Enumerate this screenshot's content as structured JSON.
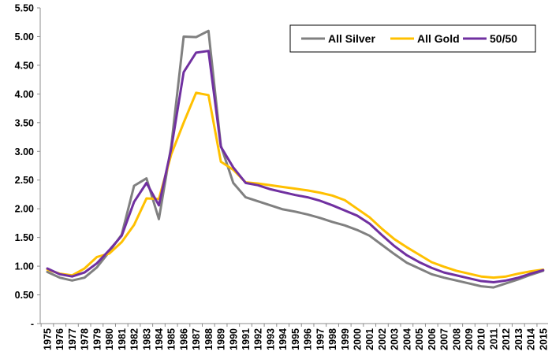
{
  "chart_data": {
    "type": "line",
    "title": "",
    "xlabel": "",
    "ylabel": "",
    "ylim": [
      0,
      5.5
    ],
    "grid": false,
    "legend_position": "top-right",
    "y_ticks": [
      "-",
      "0.50",
      "1.00",
      "1.50",
      "2.00",
      "2.50",
      "3.00",
      "3.50",
      "4.00",
      "4.50",
      "5.00",
      "5.50"
    ],
    "categories": [
      "1975",
      "1976",
      "1977",
      "1978",
      "1979",
      "1980",
      "1981",
      "1982",
      "1983",
      "1984",
      "1985",
      "1986",
      "1987",
      "1988",
      "1989",
      "1990",
      "1991",
      "1992",
      "1993",
      "1994",
      "1995",
      "1996",
      "1997",
      "1998",
      "1999",
      "2000",
      "2001",
      "2002",
      "2003",
      "2004",
      "2005",
      "2006",
      "2007",
      "2008",
      "2009",
      "2010",
      "2011",
      "2012",
      "2013",
      "2014",
      "2015"
    ],
    "series": [
      {
        "name": "All Silver",
        "color": "#808080",
        "values": [
          0.9,
          0.8,
          0.75,
          0.8,
          0.98,
          1.25,
          1.55,
          2.4,
          2.53,
          1.82,
          3.1,
          5.0,
          4.99,
          5.1,
          3.1,
          2.45,
          2.2,
          2.13,
          2.06,
          1.99,
          1.95,
          1.9,
          1.84,
          1.77,
          1.71,
          1.63,
          1.53,
          1.37,
          1.21,
          1.06,
          0.96,
          0.86,
          0.8,
          0.75,
          0.7,
          0.65,
          0.63,
          0.7,
          0.77,
          0.85,
          0.92
        ]
      },
      {
        "name": "All Gold",
        "color": "#FFC000",
        "values": [
          0.94,
          0.87,
          0.84,
          0.96,
          1.16,
          1.22,
          1.42,
          1.72,
          2.18,
          2.17,
          2.95,
          3.5,
          4.02,
          3.98,
          2.82,
          2.68,
          2.46,
          2.44,
          2.41,
          2.38,
          2.35,
          2.32,
          2.28,
          2.23,
          2.15,
          2.0,
          1.85,
          1.65,
          1.47,
          1.33,
          1.2,
          1.07,
          0.99,
          0.92,
          0.87,
          0.82,
          0.8,
          0.82,
          0.87,
          0.91,
          0.94
        ]
      },
      {
        "name": "50/50",
        "color": "#7030A0",
        "values": [
          0.96,
          0.86,
          0.82,
          0.89,
          1.05,
          1.28,
          1.53,
          2.12,
          2.45,
          2.06,
          3.05,
          4.38,
          4.72,
          4.75,
          3.08,
          2.72,
          2.45,
          2.41,
          2.34,
          2.29,
          2.24,
          2.2,
          2.14,
          2.06,
          1.97,
          1.88,
          1.74,
          1.54,
          1.35,
          1.19,
          1.07,
          0.97,
          0.89,
          0.84,
          0.79,
          0.74,
          0.72,
          0.75,
          0.8,
          0.87,
          0.93
        ]
      }
    ]
  }
}
